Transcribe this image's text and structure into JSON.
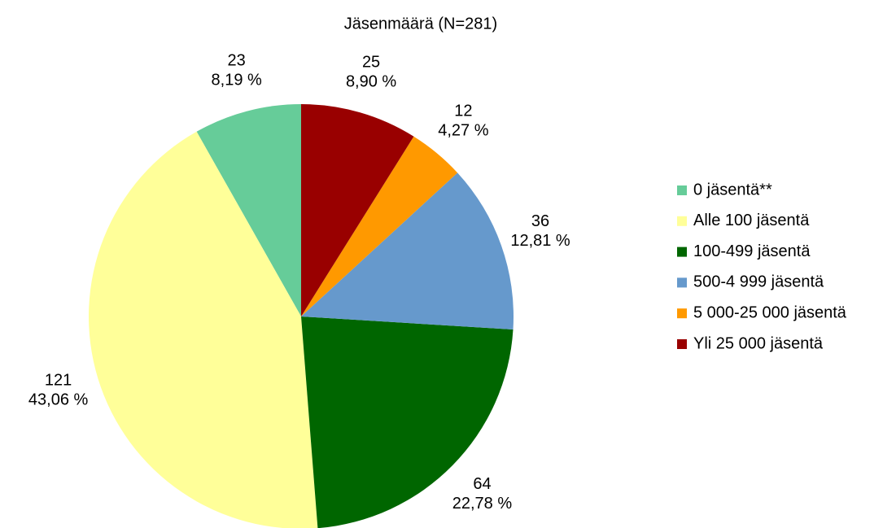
{
  "chart_data": {
    "type": "pie",
    "title": "Jäsenmäärä (N=281)",
    "categories": [
      "0 jäsentä**",
      "Alle 100 jäsentä",
      "100-499 jäsentä",
      "500-4 999 jäsentä",
      "5 000-25 000 jäsentä",
      "Yli 25 000 jäsentä"
    ],
    "values": [
      23,
      121,
      64,
      36,
      12,
      25
    ],
    "percent_labels": [
      "8,19 %",
      "43,06 %",
      "22,78 %",
      "12,81 %",
      "4,27 %",
      "8,90 %"
    ],
    "colors": [
      "#66cc99",
      "#ffff99",
      "#006600",
      "#6699cc",
      "#ff9900",
      "#990000"
    ],
    "legend": "right"
  }
}
